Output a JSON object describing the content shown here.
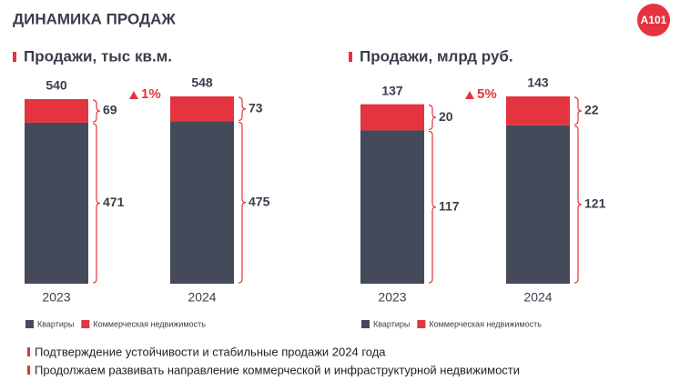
{
  "title": "ДИНАМИКА ПРОДАЖ",
  "logo": "А101",
  "chart_data": [
    {
      "type": "stacked-bar",
      "title": "Продажи, тыс кв.м.",
      "categories": [
        "2023",
        "2024"
      ],
      "series": [
        {
          "name": "Квартиры",
          "color": "#454a5a",
          "values": [
            471,
            475
          ]
        },
        {
          "name": "Коммерческая недвижимость",
          "color": "#e3343f",
          "values": [
            69,
            73
          ]
        }
      ],
      "totals": [
        540,
        548
      ],
      "change": "1%"
    },
    {
      "type": "stacked-bar",
      "title": "Продажи, млрд руб.",
      "categories": [
        "2023",
        "2024"
      ],
      "series": [
        {
          "name": "Квартиры",
          "color": "#454a5a",
          "values": [
            117,
            121
          ]
        },
        {
          "name": "Коммерческая недвижимость",
          "color": "#e3343f",
          "values": [
            20,
            22
          ]
        }
      ],
      "totals": [
        137,
        143
      ],
      "change": "5%"
    }
  ],
  "bullets": [
    "Подтверждение устойчивости и стабильные продажи 2024 года",
    "Продолжаем развивать направление коммерческой и инфраструктурной недвижимости"
  ]
}
